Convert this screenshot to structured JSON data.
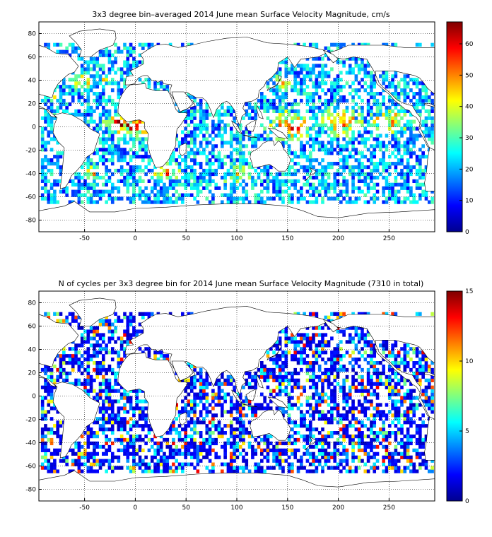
{
  "chart_data": [
    {
      "type": "heatmap",
      "title": "3x3 degree bin–averaged 2014 June mean Surface Velocity Magnitude, cm/s",
      "xlabel": "",
      "ylabel": "",
      "xlim": [
        -95,
        295
      ],
      "ylim": [
        -90,
        90
      ],
      "xticks": [
        "-50",
        "0",
        "50",
        "100",
        "150",
        "200",
        "250"
      ],
      "yticks": [
        "80",
        "60",
        "40",
        "20",
        "0",
        "-20",
        "-40",
        "-60",
        "-80"
      ],
      "bin_size_deg": 3,
      "grid": "dotted",
      "colorbar": {
        "range": [
          0,
          67
        ],
        "ticks": [
          "0",
          "10",
          "20",
          "30",
          "40",
          "50",
          "60"
        ],
        "placement": "right",
        "colormap": "jet"
      },
      "colors": {
        "low": "#00008f",
        "high": "#7f0000",
        "land": "#ffffff",
        "coast": "#000000"
      }
    },
    {
      "type": "heatmap",
      "title": "N of cycles per 3x3 degree bin for 2014 June mean Surface Velocity Magnitude (7310 in total)",
      "xlabel": "",
      "ylabel": "",
      "xlim": [
        -95,
        295
      ],
      "ylim": [
        -90,
        90
      ],
      "xticks": [
        "-50",
        "0",
        "50",
        "100",
        "150",
        "200",
        "250"
      ],
      "yticks": [
        "80",
        "60",
        "40",
        "20",
        "0",
        "-20",
        "-40",
        "-60",
        "-80"
      ],
      "bin_size_deg": 3,
      "grid": "dotted",
      "colorbar": {
        "range": [
          0,
          15
        ],
        "ticks": [
          "0",
          "5",
          "10",
          "15"
        ],
        "placement": "right",
        "colormap": "jet"
      },
      "colors": {
        "low": "#00008f",
        "high": "#7f0000",
        "land": "#ffffff",
        "coast": "#000000"
      }
    }
  ]
}
